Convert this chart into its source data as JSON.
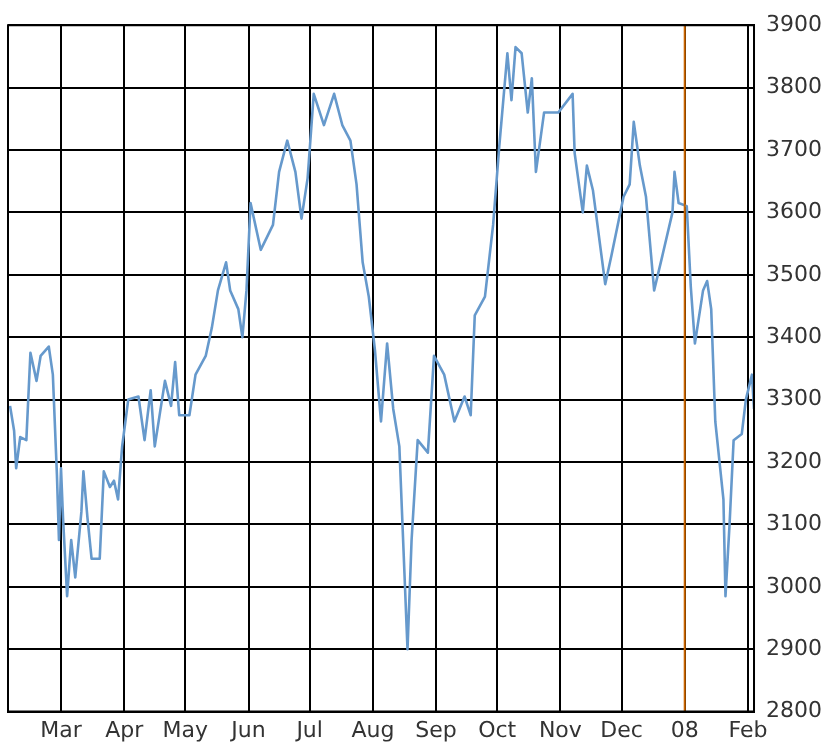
{
  "chart_data": {
    "type": "line",
    "xlim": [
      "2007-02-03",
      "2008-02-04"
    ],
    "xticks": [
      {
        "value": "2007-03-01",
        "label": "Mar"
      },
      {
        "value": "2007-04-01",
        "label": "Apr"
      },
      {
        "value": "2007-05-01",
        "label": "May"
      },
      {
        "value": "2007-06-01",
        "label": "Jun"
      },
      {
        "value": "2007-07-01",
        "label": "Jul"
      },
      {
        "value": "2007-08-01",
        "label": "Aug"
      },
      {
        "value": "2007-09-01",
        "label": "Sep"
      },
      {
        "value": "2007-10-01",
        "label": "Oct"
      },
      {
        "value": "2007-11-01",
        "label": "Nov"
      },
      {
        "value": "2007-12-01",
        "label": "Dec"
      },
      {
        "value": "2008-01-01",
        "label": "08"
      },
      {
        "value": "2008-02-01",
        "label": "Feb"
      }
    ],
    "ylim": [
      2800,
      3900
    ],
    "yticks": [
      2800,
      2900,
      3000,
      3100,
      3200,
      3300,
      3400,
      3500,
      3600,
      3700,
      3800,
      3900
    ],
    "grid": true,
    "legend": false,
    "marker": "none",
    "line_style": "solid",
    "ref_lines": [
      {
        "axis": "x",
        "value": "2008-01-01",
        "color": "#cc6600"
      }
    ],
    "x": [
      "2007-02-04",
      "2007-02-06",
      "2007-02-07",
      "2007-02-09",
      "2007-02-12",
      "2007-02-14",
      "2007-02-17",
      "2007-02-19",
      "2007-02-23",
      "2007-02-25",
      "2007-02-27",
      "2007-02-28",
      "2007-03-01",
      "2007-03-02",
      "2007-03-04",
      "2007-03-06",
      "2007-03-08",
      "2007-03-11",
      "2007-03-12",
      "2007-03-14",
      "2007-03-16",
      "2007-03-20",
      "2007-03-22",
      "2007-03-25",
      "2007-03-27",
      "2007-03-29",
      "2007-03-31",
      "2007-04-03",
      "2007-04-08",
      "2007-04-11",
      "2007-04-14",
      "2007-04-16",
      "2007-04-21",
      "2007-04-24",
      "2007-04-26",
      "2007-04-28",
      "2007-05-03",
      "2007-05-06",
      "2007-05-11",
      "2007-05-14",
      "2007-05-17",
      "2007-05-21",
      "2007-05-23",
      "2007-05-27",
      "2007-05-29",
      "2007-05-31",
      "2007-06-02",
      "2007-06-07",
      "2007-06-13",
      "2007-06-16",
      "2007-06-20",
      "2007-06-24",
      "2007-06-27",
      "2007-06-30",
      "2007-07-03",
      "2007-07-08",
      "2007-07-13",
      "2007-07-17",
      "2007-07-21",
      "2007-07-24",
      "2007-07-27",
      "2007-07-30",
      "2007-08-02",
      "2007-08-05",
      "2007-08-08",
      "2007-08-11",
      "2007-08-14",
      "2007-08-18",
      "2007-08-20",
      "2007-08-23",
      "2007-08-28",
      "2007-08-31",
      "2007-09-05",
      "2007-09-10",
      "2007-09-15",
      "2007-09-18",
      "2007-09-20",
      "2007-09-25",
      "2007-09-29",
      "2007-10-02",
      "2007-10-06",
      "2007-10-08",
      "2007-10-10",
      "2007-10-13",
      "2007-10-16",
      "2007-10-18",
      "2007-10-20",
      "2007-10-24",
      "2007-10-31",
      "2007-11-07",
      "2007-11-08",
      "2007-11-12",
      "2007-11-14",
      "2007-11-17",
      "2007-11-23",
      "2007-11-26",
      "2007-12-02",
      "2007-12-05",
      "2007-12-07",
      "2007-12-10",
      "2007-12-13",
      "2007-12-17",
      "2007-12-21",
      "2007-12-26",
      "2007-12-27",
      "2007-12-29",
      "2008-01-02",
      "2008-01-04",
      "2008-01-06",
      "2008-01-10",
      "2008-01-12",
      "2008-01-14",
      "2008-01-16",
      "2008-01-20",
      "2008-01-21",
      "2008-01-23",
      "2008-01-25",
      "2008-01-29",
      "2008-01-31",
      "2008-02-03",
      "2008-02-04"
    ],
    "series": [
      {
        "color": "#6699cc",
        "values": [
          3290,
          3250,
          3190,
          3240,
          3235,
          3375,
          3330,
          3370,
          3385,
          3340,
          3180,
          3075,
          3190,
          3110,
          2985,
          3075,
          3015,
          3120,
          3185,
          3110,
          3045,
          3045,
          3185,
          3160,
          3170,
          3140,
          3225,
          3300,
          3305,
          3235,
          3315,
          3225,
          3330,
          3290,
          3360,
          3275,
          3275,
          3340,
          3370,
          3415,
          3475,
          3520,
          3475,
          3445,
          3400,
          3475,
          3615,
          3540,
          3580,
          3665,
          3715,
          3665,
          3590,
          3655,
          3790,
          3740,
          3790,
          3740,
          3715,
          3645,
          3520,
          3465,
          3380,
          3265,
          3390,
          3285,
          3225,
          2900,
          3075,
          3235,
          3215,
          3370,
          3340,
          3265,
          3305,
          3275,
          3435,
          3465,
          3580,
          3705,
          3855,
          3780,
          3865,
          3855,
          3760,
          3815,
          3665,
          3760,
          3760,
          3790,
          3695,
          3600,
          3675,
          3635,
          3485,
          3530,
          3625,
          3645,
          3745,
          3675,
          3625,
          3475,
          3530,
          3600,
          3665,
          3615,
          3610,
          3480,
          3390,
          3475,
          3490,
          3445,
          3265,
          3140,
          2985,
          3100,
          3235,
          3245,
          3300,
          3340,
          3285
        ]
      }
    ]
  }
}
